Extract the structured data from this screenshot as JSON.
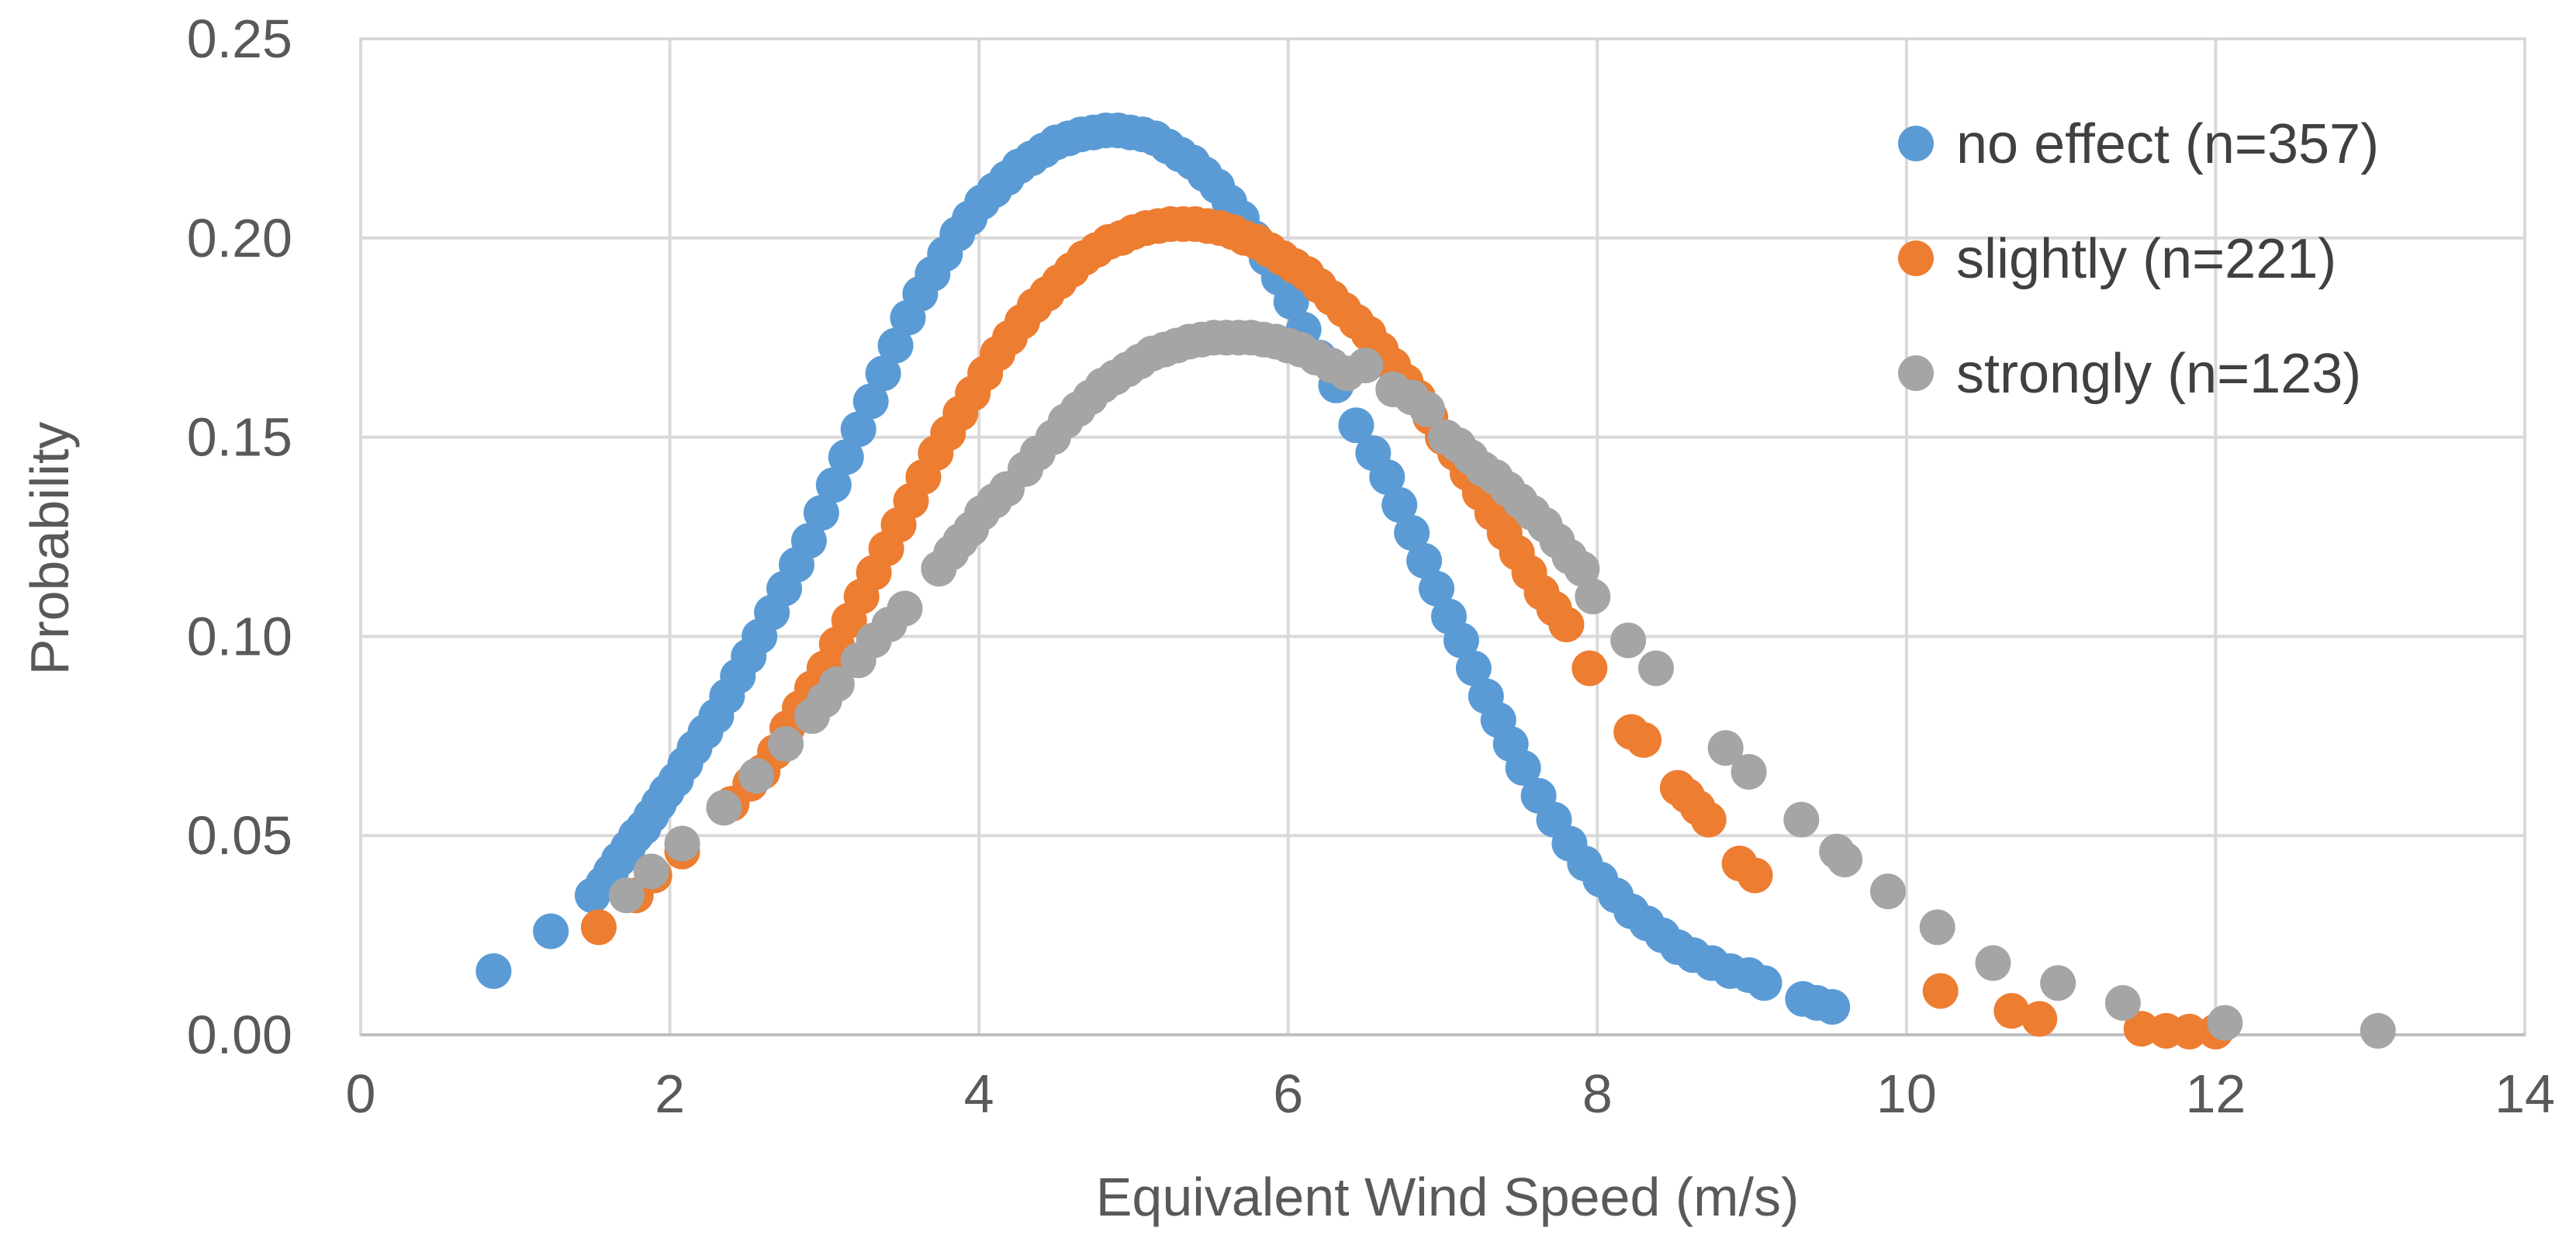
{
  "chart_data": {
    "type": "scatter",
    "title": "",
    "xlabel": "Equivalent Wind Speed (m/s)",
    "ylabel": "Probability",
    "xlim": [
      0,
      14
    ],
    "ylim": [
      0,
      0.25
    ],
    "x_ticks": [
      0,
      2,
      4,
      6,
      8,
      10,
      12,
      14
    ],
    "x_tick_labels": [
      "0",
      "2",
      "4",
      "6",
      "8",
      "10",
      "12",
      "14"
    ],
    "y_ticks": [
      0,
      0.05,
      0.1,
      0.15,
      0.2,
      0.25
    ],
    "y_tick_labels": [
      "0.00",
      "0.05",
      "0.10",
      "0.15",
      "0.20",
      "0.25"
    ],
    "grid": true,
    "legend_position": "top-right",
    "series": [
      {
        "name": "no effect (n=357)",
        "color": "#5B9BD5",
        "points": [
          [
            0.86,
            0.016
          ],
          [
            1.23,
            0.026
          ],
          [
            1.5,
            0.035
          ],
          [
            1.57,
            0.038
          ],
          [
            1.62,
            0.041
          ],
          [
            1.67,
            0.044
          ],
          [
            1.73,
            0.047
          ],
          [
            1.78,
            0.05
          ],
          [
            1.83,
            0.052
          ],
          [
            1.88,
            0.055
          ],
          [
            1.93,
            0.058
          ],
          [
            1.98,
            0.061
          ],
          [
            2.04,
            0.064
          ],
          [
            2.1,
            0.068
          ],
          [
            2.16,
            0.072
          ],
          [
            2.23,
            0.076
          ],
          [
            2.3,
            0.08
          ],
          [
            2.37,
            0.085
          ],
          [
            2.44,
            0.09
          ],
          [
            2.51,
            0.095
          ],
          [
            2.58,
            0.1
          ],
          [
            2.66,
            0.106
          ],
          [
            2.74,
            0.112
          ],
          [
            2.82,
            0.118
          ],
          [
            2.9,
            0.124
          ],
          [
            2.98,
            0.131
          ],
          [
            3.06,
            0.138
          ],
          [
            3.14,
            0.145
          ],
          [
            3.22,
            0.152
          ],
          [
            3.3,
            0.159
          ],
          [
            3.38,
            0.166
          ],
          [
            3.46,
            0.173
          ],
          [
            3.54,
            0.18
          ],
          [
            3.62,
            0.186
          ],
          [
            3.7,
            0.191
          ],
          [
            3.78,
            0.196
          ],
          [
            3.86,
            0.201
          ],
          [
            3.94,
            0.205
          ],
          [
            4.02,
            0.209
          ],
          [
            4.1,
            0.212
          ],
          [
            4.18,
            0.215
          ],
          [
            4.26,
            0.218
          ],
          [
            4.34,
            0.22
          ],
          [
            4.42,
            0.222
          ],
          [
            4.5,
            0.224
          ],
          [
            4.58,
            0.225
          ],
          [
            4.66,
            0.226
          ],
          [
            4.74,
            0.2265
          ],
          [
            4.82,
            0.227
          ],
          [
            4.9,
            0.227
          ],
          [
            4.98,
            0.2265
          ],
          [
            5.06,
            0.226
          ],
          [
            5.14,
            0.225
          ],
          [
            5.22,
            0.223
          ],
          [
            5.3,
            0.221
          ],
          [
            5.38,
            0.219
          ],
          [
            5.46,
            0.216
          ],
          [
            5.54,
            0.213
          ],
          [
            5.62,
            0.209
          ],
          [
            5.7,
            0.205
          ],
          [
            5.78,
            0.2
          ],
          [
            5.86,
            0.195
          ],
          [
            5.94,
            0.19
          ],
          [
            6.02,
            0.184
          ],
          [
            6.1,
            0.177
          ],
          [
            6.2,
            0.17
          ],
          [
            6.31,
            0.163
          ],
          [
            6.44,
            0.153
          ],
          [
            6.55,
            0.146
          ],
          [
            6.64,
            0.14
          ],
          [
            6.72,
            0.133
          ],
          [
            6.8,
            0.126
          ],
          [
            6.88,
            0.119
          ],
          [
            6.96,
            0.112
          ],
          [
            7.04,
            0.105
          ],
          [
            7.12,
            0.099
          ],
          [
            7.2,
            0.092
          ],
          [
            7.28,
            0.085
          ],
          [
            7.36,
            0.079
          ],
          [
            7.44,
            0.073
          ],
          [
            7.52,
            0.067
          ],
          [
            7.62,
            0.06
          ],
          [
            7.72,
            0.054
          ],
          [
            7.82,
            0.048
          ],
          [
            7.92,
            0.043
          ],
          [
            8.02,
            0.039
          ],
          [
            8.12,
            0.035
          ],
          [
            8.22,
            0.031
          ],
          [
            8.32,
            0.028
          ],
          [
            8.42,
            0.025
          ],
          [
            8.52,
            0.022
          ],
          [
            8.62,
            0.02
          ],
          [
            8.74,
            0.018
          ],
          [
            8.86,
            0.016
          ],
          [
            8.98,
            0.015
          ],
          [
            9.08,
            0.013
          ],
          [
            9.33,
            0.009
          ],
          [
            9.42,
            0.008
          ],
          [
            9.52,
            0.007
          ]
        ]
      },
      {
        "name": "slightly (n=221)",
        "color": "#ED7D31",
        "points": [
          [
            1.54,
            0.027
          ],
          [
            1.78,
            0.035
          ],
          [
            1.9,
            0.04
          ],
          [
            2.08,
            0.046
          ],
          [
            2.4,
            0.058
          ],
          [
            2.52,
            0.063
          ],
          [
            2.6,
            0.066
          ],
          [
            2.68,
            0.071
          ],
          [
            2.76,
            0.077
          ],
          [
            2.84,
            0.082
          ],
          [
            2.92,
            0.087
          ],
          [
            3.0,
            0.092
          ],
          [
            3.08,
            0.098
          ],
          [
            3.16,
            0.104
          ],
          [
            3.24,
            0.11
          ],
          [
            3.32,
            0.116
          ],
          [
            3.4,
            0.122
          ],
          [
            3.48,
            0.128
          ],
          [
            3.56,
            0.134
          ],
          [
            3.64,
            0.14
          ],
          [
            3.72,
            0.146
          ],
          [
            3.8,
            0.151
          ],
          [
            3.88,
            0.156
          ],
          [
            3.96,
            0.161
          ],
          [
            4.04,
            0.166
          ],
          [
            4.12,
            0.171
          ],
          [
            4.2,
            0.175
          ],
          [
            4.28,
            0.179
          ],
          [
            4.36,
            0.183
          ],
          [
            4.44,
            0.186
          ],
          [
            4.52,
            0.189
          ],
          [
            4.6,
            0.192
          ],
          [
            4.68,
            0.195
          ],
          [
            4.76,
            0.197
          ],
          [
            4.84,
            0.199
          ],
          [
            4.92,
            0.2
          ],
          [
            5.0,
            0.2015
          ],
          [
            5.08,
            0.2025
          ],
          [
            5.16,
            0.203
          ],
          [
            5.24,
            0.2035
          ],
          [
            5.32,
            0.2035
          ],
          [
            5.4,
            0.2035
          ],
          [
            5.48,
            0.203
          ],
          [
            5.56,
            0.2025
          ],
          [
            5.64,
            0.2015
          ],
          [
            5.72,
            0.2
          ],
          [
            5.8,
            0.199
          ],
          [
            5.88,
            0.197
          ],
          [
            5.96,
            0.195
          ],
          [
            6.04,
            0.193
          ],
          [
            6.12,
            0.191
          ],
          [
            6.2,
            0.188
          ],
          [
            6.28,
            0.185
          ],
          [
            6.36,
            0.182
          ],
          [
            6.44,
            0.179
          ],
          [
            6.52,
            0.176
          ],
          [
            6.6,
            0.172
          ],
          [
            6.68,
            0.168
          ],
          [
            6.76,
            0.164
          ],
          [
            6.84,
            0.16
          ],
          [
            6.92,
            0.155
          ],
          [
            7.0,
            0.15
          ],
          [
            7.08,
            0.146
          ],
          [
            7.16,
            0.141
          ],
          [
            7.24,
            0.136
          ],
          [
            7.32,
            0.131
          ],
          [
            7.4,
            0.126
          ],
          [
            7.48,
            0.121
          ],
          [
            7.56,
            0.116
          ],
          [
            7.64,
            0.111
          ],
          [
            7.72,
            0.107
          ],
          [
            7.8,
            0.103
          ],
          [
            7.95,
            0.092
          ],
          [
            8.22,
            0.076
          ],
          [
            8.3,
            0.074
          ],
          [
            8.52,
            0.062
          ],
          [
            8.58,
            0.06
          ],
          [
            8.65,
            0.057
          ],
          [
            8.72,
            0.054
          ],
          [
            8.92,
            0.043
          ],
          [
            9.02,
            0.04
          ],
          [
            10.22,
            0.011
          ],
          [
            10.68,
            0.006
          ],
          [
            10.86,
            0.004
          ],
          [
            11.52,
            0.0015
          ],
          [
            11.68,
            0.001
          ],
          [
            11.83,
            0.0008
          ],
          [
            12.0,
            0.0008
          ]
        ]
      },
      {
        "name": "strongly (n=123)",
        "color": "#A5A5A5",
        "points": [
          [
            1.72,
            0.035
          ],
          [
            1.88,
            0.041
          ],
          [
            2.08,
            0.048
          ],
          [
            2.35,
            0.057
          ],
          [
            2.56,
            0.065
          ],
          [
            2.75,
            0.073
          ],
          [
            2.92,
            0.08
          ],
          [
            3.0,
            0.084
          ],
          [
            3.08,
            0.088
          ],
          [
            3.22,
            0.094
          ],
          [
            3.32,
            0.099
          ],
          [
            3.42,
            0.103
          ],
          [
            3.52,
            0.107
          ],
          [
            3.74,
            0.117
          ],
          [
            3.82,
            0.121
          ],
          [
            3.88,
            0.124
          ],
          [
            3.95,
            0.127
          ],
          [
            4.02,
            0.131
          ],
          [
            4.1,
            0.134
          ],
          [
            4.18,
            0.137
          ],
          [
            4.3,
            0.142
          ],
          [
            4.38,
            0.146
          ],
          [
            4.48,
            0.15
          ],
          [
            4.56,
            0.154
          ],
          [
            4.64,
            0.157
          ],
          [
            4.72,
            0.16
          ],
          [
            4.8,
            0.163
          ],
          [
            4.88,
            0.165
          ],
          [
            4.96,
            0.167
          ],
          [
            5.04,
            0.169
          ],
          [
            5.12,
            0.171
          ],
          [
            5.2,
            0.172
          ],
          [
            5.28,
            0.173
          ],
          [
            5.36,
            0.174
          ],
          [
            5.44,
            0.1745
          ],
          [
            5.52,
            0.175
          ],
          [
            5.6,
            0.175
          ],
          [
            5.68,
            0.175
          ],
          [
            5.76,
            0.175
          ],
          [
            5.84,
            0.1745
          ],
          [
            5.92,
            0.174
          ],
          [
            6.0,
            0.173
          ],
          [
            6.08,
            0.172
          ],
          [
            6.18,
            0.17
          ],
          [
            6.28,
            0.168
          ],
          [
            6.38,
            0.166
          ],
          [
            6.5,
            0.168
          ],
          [
            6.68,
            0.162
          ],
          [
            6.8,
            0.16
          ],
          [
            6.9,
            0.157
          ],
          [
            7.02,
            0.15
          ],
          [
            7.1,
            0.148
          ],
          [
            7.18,
            0.145
          ],
          [
            7.26,
            0.142
          ],
          [
            7.34,
            0.14
          ],
          [
            7.42,
            0.137
          ],
          [
            7.5,
            0.134
          ],
          [
            7.58,
            0.131
          ],
          [
            7.66,
            0.128
          ],
          [
            7.74,
            0.124
          ],
          [
            7.82,
            0.12
          ],
          [
            7.9,
            0.117
          ],
          [
            7.97,
            0.11
          ],
          [
            8.2,
            0.099
          ],
          [
            8.38,
            0.092
          ],
          [
            8.83,
            0.072
          ],
          [
            8.98,
            0.066
          ],
          [
            9.32,
            0.054
          ],
          [
            9.55,
            0.046
          ],
          [
            9.6,
            0.044
          ],
          [
            9.88,
            0.036
          ],
          [
            10.2,
            0.027
          ],
          [
            10.56,
            0.018
          ],
          [
            10.98,
            0.013
          ],
          [
            11.4,
            0.008
          ],
          [
            12.06,
            0.003
          ],
          [
            13.05,
            0.001
          ]
        ]
      }
    ]
  }
}
